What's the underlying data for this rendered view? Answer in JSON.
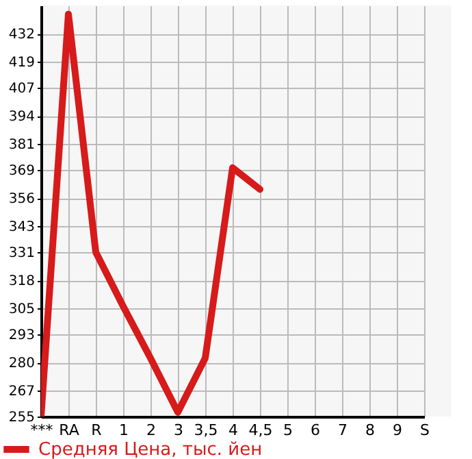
{
  "chart_data": {
    "type": "line",
    "categories": [
      "***",
      "RA",
      "R",
      "1",
      "2",
      "3",
      "3,5",
      "4",
      "4,5",
      "5",
      "6",
      "7",
      "8",
      "9",
      "S"
    ],
    "series": [
      {
        "name": "Средняя Цена, тыс. йен",
        "color": "#d71a1a",
        "values": [
          255,
          441,
          331,
          306,
          282,
          257,
          282,
          370,
          360,
          null,
          null,
          null,
          null,
          null,
          null
        ]
      }
    ],
    "ylim": [
      255,
      445
    ],
    "yticks": [
      255,
      267,
      280,
      293,
      305,
      318,
      331,
      343,
      356,
      369,
      381,
      394,
      407,
      419,
      432
    ],
    "grid": true,
    "legend": "bottom left",
    "marker": "none",
    "line_style": "solid"
  }
}
